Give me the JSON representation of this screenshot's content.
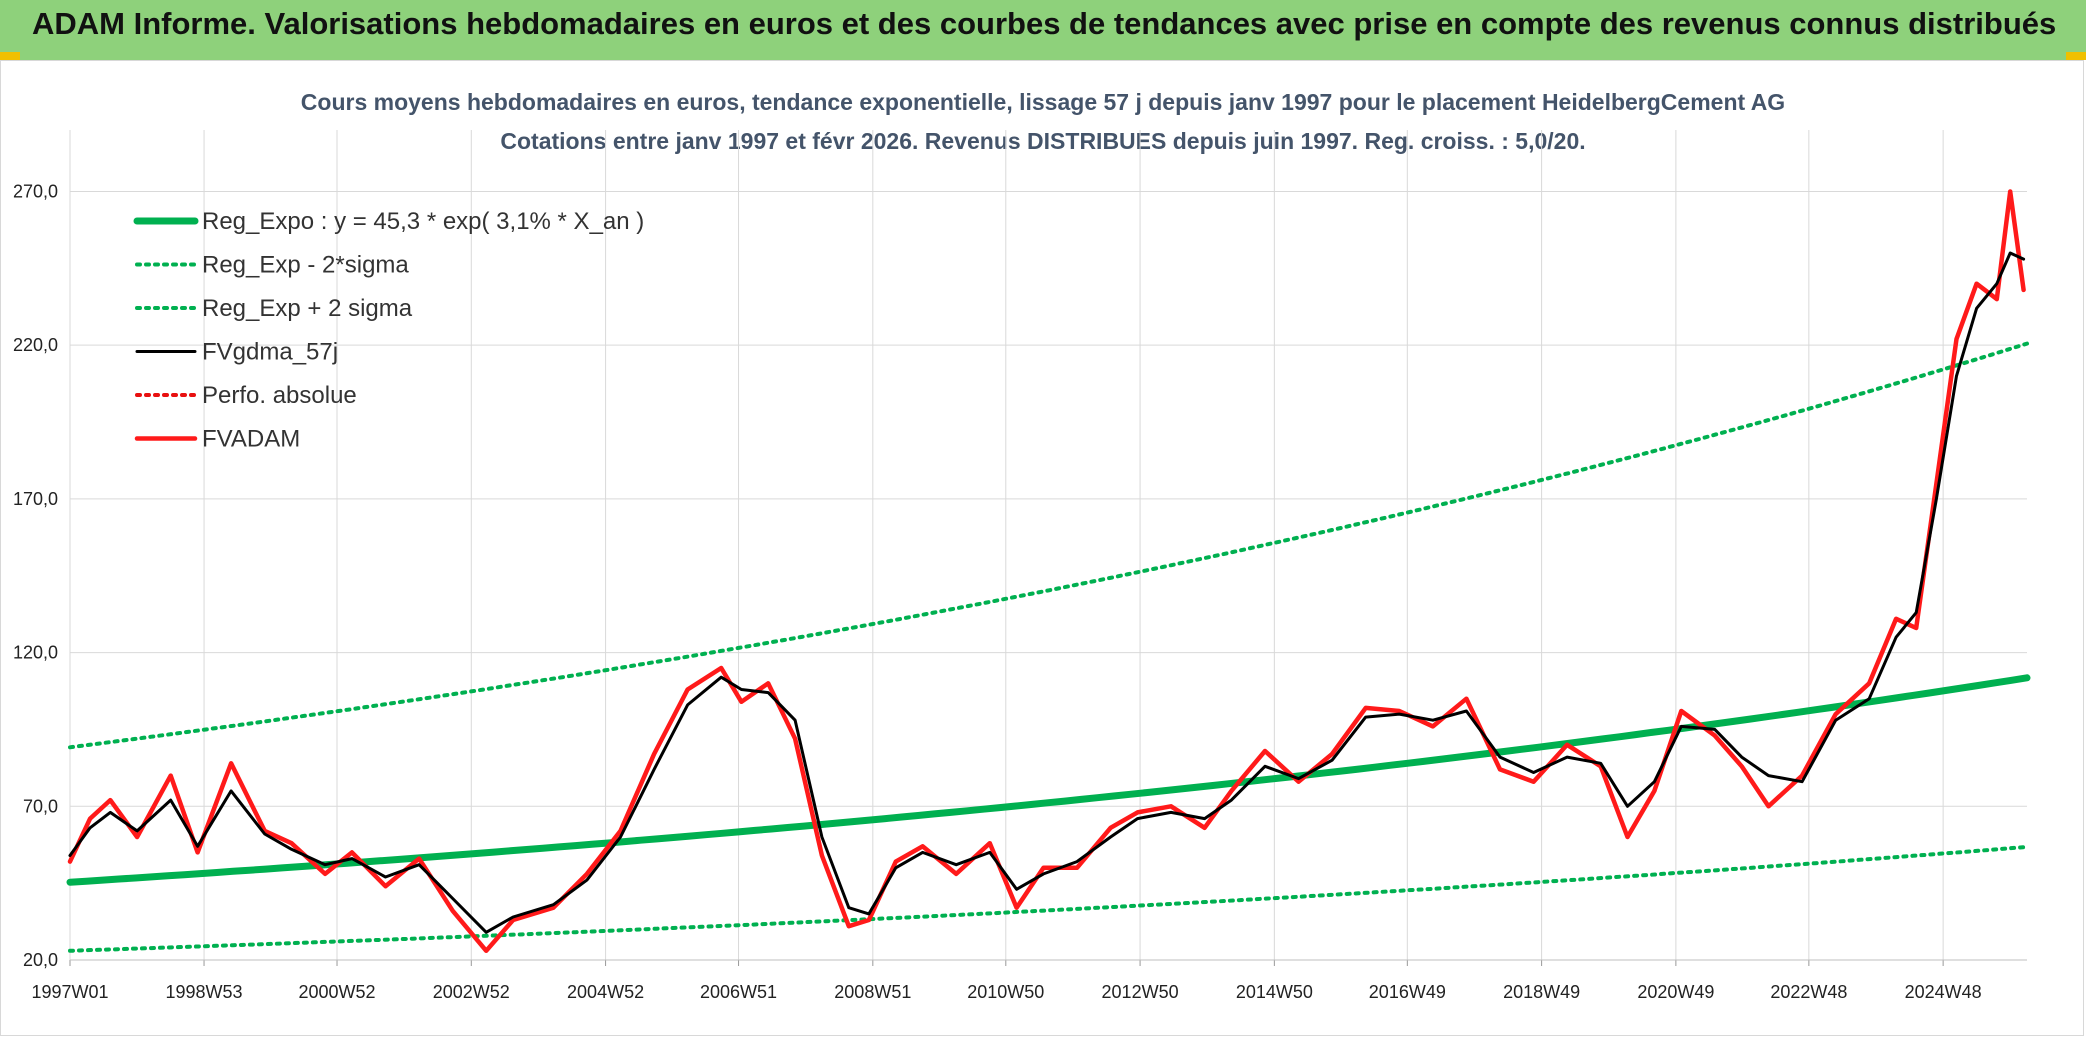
{
  "banner": {
    "title": "ADAM Informe. Valorisations hebdomadaires en euros et des courbes de tendances avec prise en compte des revenus connus distribués",
    "bg_color": "#8ed17b"
  },
  "chart_data": {
    "type": "line",
    "title": "Cours moyens hebdomadaires en euros, tendance exponentielle, lissage 57 j depuis janv 1997 pour le placement HeidelbergCement AG",
    "subtitle": "Cotations entre janv 1997 et févr 2026. Revenus DISTRIBUES depuis juin 1997. Reg. croiss. : 5,0/20.",
    "xlabel": "",
    "ylabel": "",
    "ylim": [
      20,
      290
    ],
    "xlim": [
      1997.0,
      2026.15
    ],
    "y_ticks": [
      "20,0",
      "70,0",
      "120,0",
      "170,0",
      "220,0",
      "270,0"
    ],
    "x_ticks": [
      "1997W01",
      "1998W53",
      "2000W52",
      "2002W52",
      "2004W52",
      "2006W51",
      "2008W51",
      "2010W50",
      "2012W50",
      "2014W50",
      "2016W49",
      "2018W49",
      "2020W49",
      "2022W48",
      "2024W48"
    ],
    "grid": true,
    "legend_position": "top-left",
    "series": [
      {
        "name": "Reg_Expo : y = 45,3 * exp( 3,1% *  X_an )",
        "color": "#00b050",
        "style": "solid-thick",
        "x": [
          1997,
          2000,
          2003,
          2006,
          2009,
          2012,
          2015,
          2018,
          2021,
          2024,
          2026.15
        ],
        "values": [
          45.3,
          49.8,
          54.6,
          59.9,
          65.6,
          72.1,
          79.1,
          86.8,
          95.3,
          104.6,
          111.8
        ]
      },
      {
        "name": "Reg_Exp - 2*sigma",
        "color": "#00b050",
        "style": "dotted",
        "x": [
          1997,
          2000,
          2003,
          2006,
          2009,
          2012,
          2015,
          2018,
          2021,
          2024,
          2026.15
        ],
        "values": [
          23.0,
          25.3,
          27.7,
          30.4,
          33.4,
          36.6,
          40.2,
          44.1,
          48.4,
          53.2,
          56.8
        ]
      },
      {
        "name": "Reg_Exp + 2 sigma",
        "color": "#00b050",
        "style": "dotted",
        "x": [
          1997,
          2000,
          2003,
          2006,
          2009,
          2012,
          2015,
          2018,
          2021,
          2024,
          2026.15
        ],
        "values": [
          89.2,
          98.0,
          107.5,
          118.0,
          129.5,
          142.1,
          156.0,
          171.2,
          187.9,
          206.2,
          220.5
        ]
      },
      {
        "name": "FVgdma_57j",
        "color": "#000000",
        "style": "solid",
        "x": [
          1997.0,
          1997.3,
          1997.6,
          1998.0,
          1998.5,
          1998.9,
          1999.4,
          1999.9,
          2000.3,
          2000.8,
          2001.2,
          2001.7,
          2002.2,
          2002.7,
          2003.2,
          2003.6,
          2004.2,
          2004.7,
          2005.2,
          2005.7,
          2006.2,
          2006.7,
          2007.0,
          2007.4,
          2007.8,
          2008.2,
          2008.6,
          2008.9,
          2009.3,
          2009.7,
          2010.2,
          2010.7,
          2011.1,
          2011.5,
          2012.0,
          2012.5,
          2012.9,
          2013.4,
          2013.9,
          2014.3,
          2014.8,
          2015.3,
          2015.8,
          2016.3,
          2016.8,
          2017.3,
          2017.8,
          2018.3,
          2018.8,
          2019.3,
          2019.8,
          2020.2,
          2020.6,
          2021.0,
          2021.5,
          2021.9,
          2022.3,
          2022.8,
          2023.3,
          2023.8,
          2024.2,
          2024.5,
          2024.8,
          2025.1,
          2025.4,
          2025.7,
          2025.9,
          2026.1
        ],
        "values": [
          54,
          63,
          68,
          62,
          72,
          57,
          75,
          61,
          56,
          51,
          53,
          47,
          51,
          40,
          29,
          34,
          38,
          46,
          60,
          82,
          103,
          112,
          108,
          107,
          98,
          60,
          37,
          35,
          50,
          55,
          51,
          55,
          43,
          48,
          52,
          60,
          66,
          68,
          66,
          72,
          83,
          79,
          85,
          99,
          100,
          98,
          101,
          86,
          81,
          86,
          84,
          70,
          78,
          96,
          95,
          86,
          80,
          78,
          98,
          105,
          125,
          133,
          170,
          210,
          232,
          240,
          250,
          248
        ]
      },
      {
        "name": "Perfo. absolue",
        "color": "#e81010",
        "style": "dotted",
        "x": [],
        "values": []
      },
      {
        "name": "FVADAM",
        "color": "#ff1a1a",
        "style": "solid-thick",
        "x": [
          1997.0,
          1997.3,
          1997.6,
          1998.0,
          1998.5,
          1998.9,
          1999.4,
          1999.9,
          2000.3,
          2000.8,
          2001.2,
          2001.7,
          2002.2,
          2002.7,
          2003.2,
          2003.6,
          2004.2,
          2004.7,
          2005.2,
          2005.7,
          2006.2,
          2006.7,
          2007.0,
          2007.4,
          2007.8,
          2008.2,
          2008.6,
          2008.9,
          2009.3,
          2009.7,
          2010.2,
          2010.7,
          2011.1,
          2011.5,
          2012.0,
          2012.5,
          2012.9,
          2013.4,
          2013.9,
          2014.3,
          2014.8,
          2015.3,
          2015.8,
          2016.3,
          2016.8,
          2017.3,
          2017.8,
          2018.3,
          2018.8,
          2019.3,
          2019.8,
          2020.2,
          2020.6,
          2021.0,
          2021.5,
          2021.9,
          2022.3,
          2022.8,
          2023.3,
          2023.8,
          2024.2,
          2024.5,
          2024.8,
          2025.1,
          2025.4,
          2025.7,
          2025.9,
          2026.1
        ],
        "values": [
          52,
          66,
          72,
          60,
          80,
          55,
          84,
          62,
          58,
          48,
          55,
          44,
          53,
          36,
          23,
          33,
          37,
          48,
          62,
          87,
          108,
          115,
          104,
          110,
          92,
          54,
          31,
          33,
          52,
          57,
          48,
          58,
          37,
          50,
          50,
          63,
          68,
          70,
          63,
          75,
          88,
          78,
          87,
          102,
          101,
          96,
          105,
          82,
          78,
          90,
          83,
          60,
          75,
          101,
          93,
          83,
          70,
          80,
          100,
          110,
          131,
          128,
          175,
          222,
          240,
          235,
          270,
          238
        ]
      }
    ]
  }
}
